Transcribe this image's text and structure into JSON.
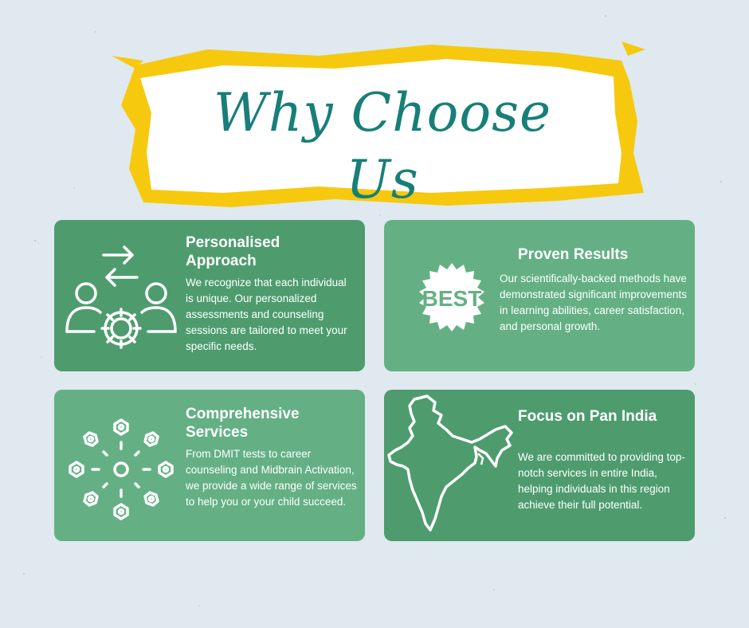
{
  "title": {
    "line1": "Why Choose",
    "line2": "Us"
  },
  "colors": {
    "background": "#dfe9ef",
    "title": "#177f78",
    "brush": "#f6c90e",
    "card_dark": "#4e9c6e",
    "card_light": "#64b084"
  },
  "cards": [
    {
      "heading": "Personalised Approach",
      "body": "We recognize that each individual is unique. Our personalized assessments and counseling sessions are tailored to meet your specific needs.",
      "icon": "people-gear-arrows-icon"
    },
    {
      "heading": "Proven Results",
      "body": "Our scientifically-backed methods have demonstrated significant improvements in learning abilities, career satisfaction, and personal growth.",
      "icon": "best-badge-icon",
      "badge_text": "BEST"
    },
    {
      "heading": "Comprehensive Services",
      "body": "From DMIT tests to career counseling and Midbrain Activation, we provide a wide range of services to help you or your child succeed.",
      "icon": "bolts-network-icon"
    },
    {
      "heading": "Focus on Pan India",
      "body": "We are committed to providing top-notch services in entire India, helping individuals in this region achieve their full potential.",
      "icon": "india-map-icon"
    }
  ]
}
